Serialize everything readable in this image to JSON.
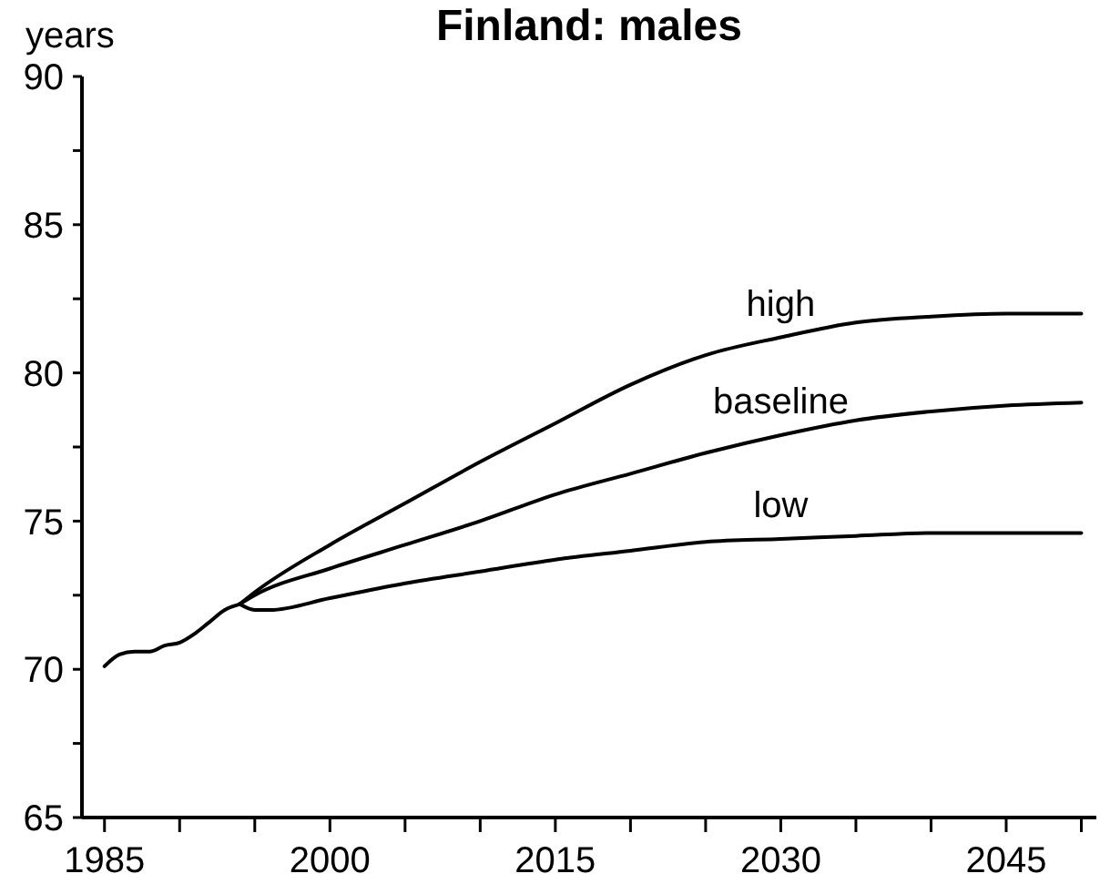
{
  "chart_data": {
    "type": "line",
    "title": "Finland: males",
    "ylabel": "years",
    "xlim": [
      1983.5,
      2051
    ],
    "xticks": [
      1985,
      {
        "value": 1990,
        "label": null
      },
      {
        "value": 1995,
        "label": null
      },
      2000,
      {
        "value": 2005,
        "label": null
      },
      {
        "value": 2010,
        "label": null
      },
      2015,
      {
        "value": 2020,
        "label": null
      },
      {
        "value": 2025,
        "label": null
      },
      2030,
      {
        "value": 2035,
        "label": null
      },
      {
        "value": 2040,
        "label": null
      },
      2045,
      {
        "value": 2050,
        "label": null
      }
    ],
    "ylim": [
      65,
      90
    ],
    "yticks": [
      65,
      {
        "value": 67.5,
        "label": null
      },
      70,
      {
        "value": 72.5,
        "label": null
      },
      75,
      {
        "value": 77.5,
        "label": null
      },
      80,
      {
        "value": 82.5,
        "label": null
      },
      85,
      {
        "value": 87.5,
        "label": null
      },
      90
    ],
    "series": [
      {
        "color": "#000000",
        "x": [
          1985,
          1986,
          1987,
          1988,
          1989,
          1990,
          1991,
          1992,
          1993,
          1994
        ],
        "values": [
          70.1,
          70.5,
          70.6,
          70.6,
          70.8,
          70.9,
          71.2,
          71.6,
          72.0,
          72.2
        ]
      },
      {
        "name": "high",
        "color": "#000000",
        "x": [
          1994,
          1995,
          2000,
          2005,
          2010,
          2015,
          2020,
          2025,
          2030,
          2035,
          2040,
          2045,
          2050
        ],
        "values": [
          72.2,
          72.6,
          74.2,
          75.6,
          77.0,
          78.3,
          79.6,
          80.6,
          81.2,
          81.7,
          81.9,
          82.0,
          82.0
        ]
      },
      {
        "name": "baseline",
        "color": "#000000",
        "x": [
          1994,
          1995,
          2000,
          2005,
          2010,
          2015,
          2020,
          2025,
          2030,
          2035,
          2040,
          2045,
          2050
        ],
        "values": [
          72.2,
          72.5,
          73.4,
          74.2,
          75.0,
          75.9,
          76.6,
          77.3,
          77.9,
          78.4,
          78.7,
          78.9,
          79.0
        ]
      },
      {
        "name": "low",
        "color": "#000000",
        "x": [
          1994,
          1995,
          1996,
          2000,
          2005,
          2010,
          2015,
          2020,
          2025,
          2030,
          2035,
          2040,
          2045,
          2050
        ],
        "values": [
          72.2,
          72.0,
          72.0,
          72.4,
          72.9,
          73.3,
          73.7,
          74.0,
          74.3,
          74.4,
          74.5,
          74.6,
          74.6,
          74.6
        ]
      }
    ]
  }
}
